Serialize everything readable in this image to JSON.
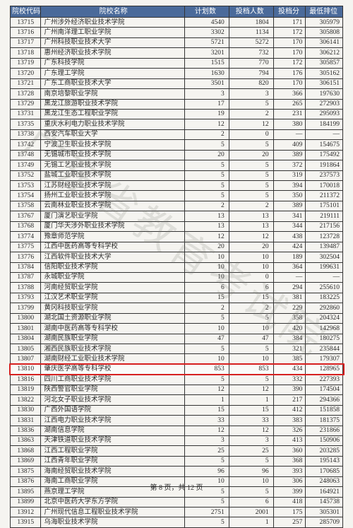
{
  "watermark": "广东省教育考试院",
  "pager": "第 8 页，共 12 页",
  "headers": {
    "code": "院校代码",
    "name": "院校名称",
    "plan": "计划数",
    "filed": "投档人数",
    "score": "投档分",
    "rank": "最低排位"
  },
  "highlight_code": "13810",
  "highlight_color": "#d62020",
  "header_bg": "#4a6a9a",
  "rows": [
    {
      "code": "13715",
      "name": "广州涉外经济职业技术学院",
      "plan": "4540",
      "filed": "1804",
      "score": "171",
      "rank": "305979"
    },
    {
      "code": "13716",
      "name": "广州南洋理工职业学院",
      "plan": "3302",
      "filed": "1134",
      "score": "172",
      "rank": "305808"
    },
    {
      "code": "13717",
      "name": "广州科技职业技术大学",
      "plan": "5721",
      "filed": "5272",
      "score": "170",
      "rank": "306141"
    },
    {
      "code": "13718",
      "name": "惠州经济职业技术学院",
      "plan": "3201",
      "filed": "732",
      "score": "170",
      "rank": "306212"
    },
    {
      "code": "13719",
      "name": "广东科技学院",
      "plan": "1515",
      "filed": "770",
      "score": "172",
      "rank": "305857"
    },
    {
      "code": "13720",
      "name": "广东理工学院",
      "plan": "1630",
      "filed": "794",
      "score": "176",
      "rank": "305162"
    },
    {
      "code": "13721",
      "name": "广东工商职业技术大学",
      "plan": "3501",
      "filed": "820",
      "score": "170",
      "rank": "306151"
    },
    {
      "code": "13728",
      "name": "南京培黎职业学院",
      "plan": "3",
      "filed": "3",
      "score": "366",
      "rank": "197630"
    },
    {
      "code": "13729",
      "name": "黑龙江旅游职业技术学院",
      "plan": "17",
      "filed": "5",
      "score": "265",
      "rank": "272903"
    },
    {
      "code": "13731",
      "name": "黑龙江生态工程职业学院",
      "plan": "19",
      "filed": "2",
      "score": "231",
      "rank": "295093"
    },
    {
      "code": "13735",
      "name": "重庆水利电力职业技术学院",
      "plan": "12",
      "filed": "12",
      "score": "380",
      "rank": "184199"
    },
    {
      "code": "13738",
      "name": "西安汽车职业大学",
      "plan": "2",
      "filed": "0",
      "score": "—",
      "rank": "—"
    },
    {
      "code": "13742",
      "name": "宁波卫生职业技术学院",
      "plan": "5",
      "filed": "5",
      "score": "409",
      "rank": "154675"
    },
    {
      "code": "13748",
      "name": "无锡城市职业技术学院",
      "plan": "20",
      "filed": "20",
      "score": "389",
      "rank": "175492"
    },
    {
      "code": "13749",
      "name": "无锡工艺职业技术学院",
      "plan": "5",
      "filed": "5",
      "score": "372",
      "rank": "191864"
    },
    {
      "code": "13752",
      "name": "盐城工业职业技术学院",
      "plan": "5",
      "filed": "5",
      "score": "319",
      "rank": "237573"
    },
    {
      "code": "13753",
      "name": "江苏财经职业技术学院",
      "plan": "5",
      "filed": "5",
      "score": "394",
      "rank": "170018"
    },
    {
      "code": "13754",
      "name": "扬州工业职业技术学院",
      "plan": "5",
      "filed": "5",
      "score": "350",
      "rank": "211372"
    },
    {
      "code": "13758",
      "name": "云南林业职业技术学院",
      "plan": "2",
      "filed": "2",
      "score": "389",
      "rank": "175101"
    },
    {
      "code": "13767",
      "name": "厦门演艺职业学院",
      "plan": "13",
      "filed": "13",
      "score": "341",
      "rank": "219111"
    },
    {
      "code": "13768",
      "name": "厦门华天涉外职业技术学院",
      "plan": "13",
      "filed": "13",
      "score": "344",
      "rank": "217156"
    },
    {
      "code": "13774",
      "name": "豫章师范学院",
      "plan": "12",
      "filed": "12",
      "score": "438",
      "rank": "123728"
    },
    {
      "code": "13775",
      "name": "江西中医药高等专科学校",
      "plan": "20",
      "filed": "20",
      "score": "424",
      "rank": "139487"
    },
    {
      "code": "13776",
      "name": "江西软件职业技术大学",
      "plan": "10",
      "filed": "10",
      "score": "189",
      "rank": "302504"
    },
    {
      "code": "13784",
      "name": "信阳职业技术学院",
      "plan": "10",
      "filed": "10",
      "score": "364",
      "rank": "199631"
    },
    {
      "code": "13787",
      "name": "永城职业学院",
      "plan": "10",
      "filed": "0",
      "score": "—",
      "rank": "—"
    },
    {
      "code": "13788",
      "name": "河南经贸职业学院",
      "plan": "6",
      "filed": "6",
      "score": "294",
      "rank": "255610"
    },
    {
      "code": "13793",
      "name": "江汉艺术职业学院",
      "plan": "15",
      "filed": "15",
      "score": "381",
      "rank": "183225"
    },
    {
      "code": "13799",
      "name": "黄冈科技职业学院",
      "plan": "2",
      "filed": "2",
      "score": "229",
      "rank": "292860"
    },
    {
      "code": "13800",
      "name": "湖北国土资源职业学院",
      "plan": "5",
      "filed": "5",
      "score": "358",
      "rank": "204324"
    },
    {
      "code": "13801",
      "name": "湖南中医药高等专科学校",
      "plan": "10",
      "filed": "10",
      "score": "420",
      "rank": "142968"
    },
    {
      "code": "13804",
      "name": "湖南民族职业学院",
      "plan": "47",
      "filed": "47",
      "score": "384",
      "rank": "180275"
    },
    {
      "code": "13805",
      "name": "湘西民族职业技术学院",
      "plan": "5",
      "filed": "5",
      "score": "321",
      "rank": "235844"
    },
    {
      "code": "13807",
      "name": "湖南财经工业职业技术学院",
      "plan": "10",
      "filed": "10",
      "score": "385",
      "rank": "179307"
    },
    {
      "code": "13810",
      "name": "肇庆医学高等专科学校",
      "plan": "853",
      "filed": "853",
      "score": "434",
      "rank": "128965"
    },
    {
      "code": "13816",
      "name": "四川工商职业技术学院",
      "plan": "5",
      "filed": "5",
      "score": "332",
      "rank": "227393"
    },
    {
      "code": "13819",
      "name": "陕西警官职业学院",
      "plan": "12",
      "filed": "12",
      "score": "390",
      "rank": "174504"
    },
    {
      "code": "13822",
      "name": "河北女子职业技术学院",
      "plan": "1",
      "filed": "1",
      "score": "217",
      "rank": "294366"
    },
    {
      "code": "13830",
      "name": "广西外国语学院",
      "plan": "15",
      "filed": "15",
      "score": "412",
      "rank": "151858"
    },
    {
      "code": "13831",
      "name": "江西电力职业技术学院",
      "plan": "33",
      "filed": "33",
      "score": "383",
      "rank": "181375"
    },
    {
      "code": "13836",
      "name": "湖南信息学院",
      "plan": "12",
      "filed": "12",
      "score": "326",
      "rank": "231866"
    },
    {
      "code": "13863",
      "name": "天津铁道职业技术学院",
      "plan": "3",
      "filed": "3",
      "score": "413",
      "rank": "150906"
    },
    {
      "code": "13868",
      "name": "江西工程职业学院",
      "plan": "25",
      "filed": "25",
      "score": "360",
      "rank": "203285"
    },
    {
      "code": "13869",
      "name": "江西青年职业学院",
      "plan": "5",
      "filed": "5",
      "score": "368",
      "rank": "195143"
    },
    {
      "code": "13875",
      "name": "海南经贸职业技术学院",
      "plan": "96",
      "filed": "96",
      "score": "393",
      "rank": "170685"
    },
    {
      "code": "13876",
      "name": "海南工商职业学院",
      "plan": "10",
      "filed": "10",
      "score": "306",
      "rank": "248063"
    },
    {
      "code": "13895",
      "name": "燕京理工学院",
      "plan": "5",
      "filed": "5",
      "score": "399",
      "rank": "164921"
    },
    {
      "code": "13899",
      "name": "北京中医药大学东方学院",
      "plan": "5",
      "filed": "6",
      "score": "418",
      "rank": "145738"
    },
    {
      "code": "13912",
      "name": "广州现代信息工程职业技术学院",
      "plan": "2751",
      "filed": "2001",
      "score": "175",
      "rank": "305301"
    },
    {
      "code": "13915",
      "name": "乌海职业技术学院",
      "plan": "5",
      "filed": "1",
      "score": "257",
      "rank": "285709"
    }
  ]
}
